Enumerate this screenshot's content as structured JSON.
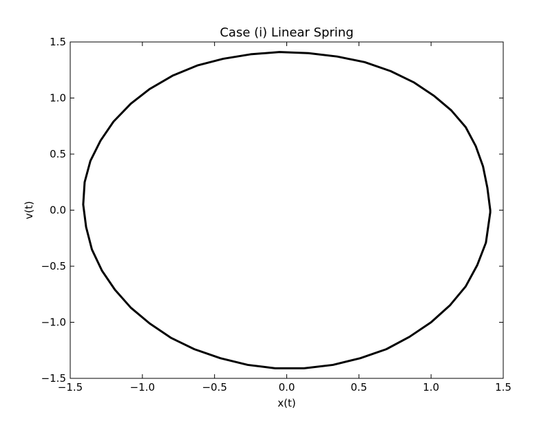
{
  "chart_data": {
    "type": "line",
    "title": "Case (i) Linear Spring",
    "xlabel": "x(t)",
    "ylabel": "v(t)",
    "xlim": [
      -1.5,
      1.5
    ],
    "ylim": [
      -1.5,
      1.5
    ],
    "xticks": [
      -1.5,
      -1.0,
      -0.5,
      0.0,
      0.5,
      1.0,
      1.5
    ],
    "yticks": [
      -1.5,
      -1.0,
      -0.5,
      0.0,
      0.5,
      1.0,
      1.5
    ],
    "xtick_labels": [
      "−1.5",
      "−1.0",
      "−0.5",
      "0.0",
      "0.5",
      "1.0",
      "1.5"
    ],
    "ytick_labels": [
      "−1.5",
      "−1.0",
      "−0.5",
      "0.0",
      "0.5",
      "1.0",
      "1.5"
    ],
    "grid": false,
    "legend": "none",
    "line_color": "#000000",
    "series": [
      {
        "x": [
          1.41,
          1.39,
          1.36,
          1.31,
          1.24,
          1.14,
          1.02,
          0.88,
          0.72,
          0.54,
          0.35,
          0.15,
          -0.05,
          -0.25,
          -0.44,
          -0.62,
          -0.79,
          -0.95,
          -1.08,
          -1.2,
          -1.29,
          -1.36,
          -1.4,
          -1.41,
          -1.39,
          -1.35,
          -1.28,
          -1.19,
          -1.08,
          -0.95,
          -0.8,
          -0.64,
          -0.46,
          -0.27,
          -0.08,
          0.12,
          0.32,
          0.51,
          0.69,
          0.85,
          1.0,
          1.13,
          1.24,
          1.32,
          1.38,
          1.41
        ],
        "y": [
          0.0,
          0.2,
          0.39,
          0.57,
          0.74,
          0.89,
          1.02,
          1.14,
          1.24,
          1.32,
          1.37,
          1.4,
          1.41,
          1.39,
          1.35,
          1.29,
          1.2,
          1.08,
          0.95,
          0.79,
          0.62,
          0.44,
          0.25,
          0.05,
          -0.15,
          -0.35,
          -0.54,
          -0.71,
          -0.87,
          -1.01,
          -1.14,
          -1.24,
          -1.32,
          -1.38,
          -1.41,
          -1.41,
          -1.38,
          -1.32,
          -1.24,
          -1.13,
          -1.0,
          -0.85,
          -0.68,
          -0.49,
          -0.29,
          -0.02
        ]
      }
    ]
  }
}
